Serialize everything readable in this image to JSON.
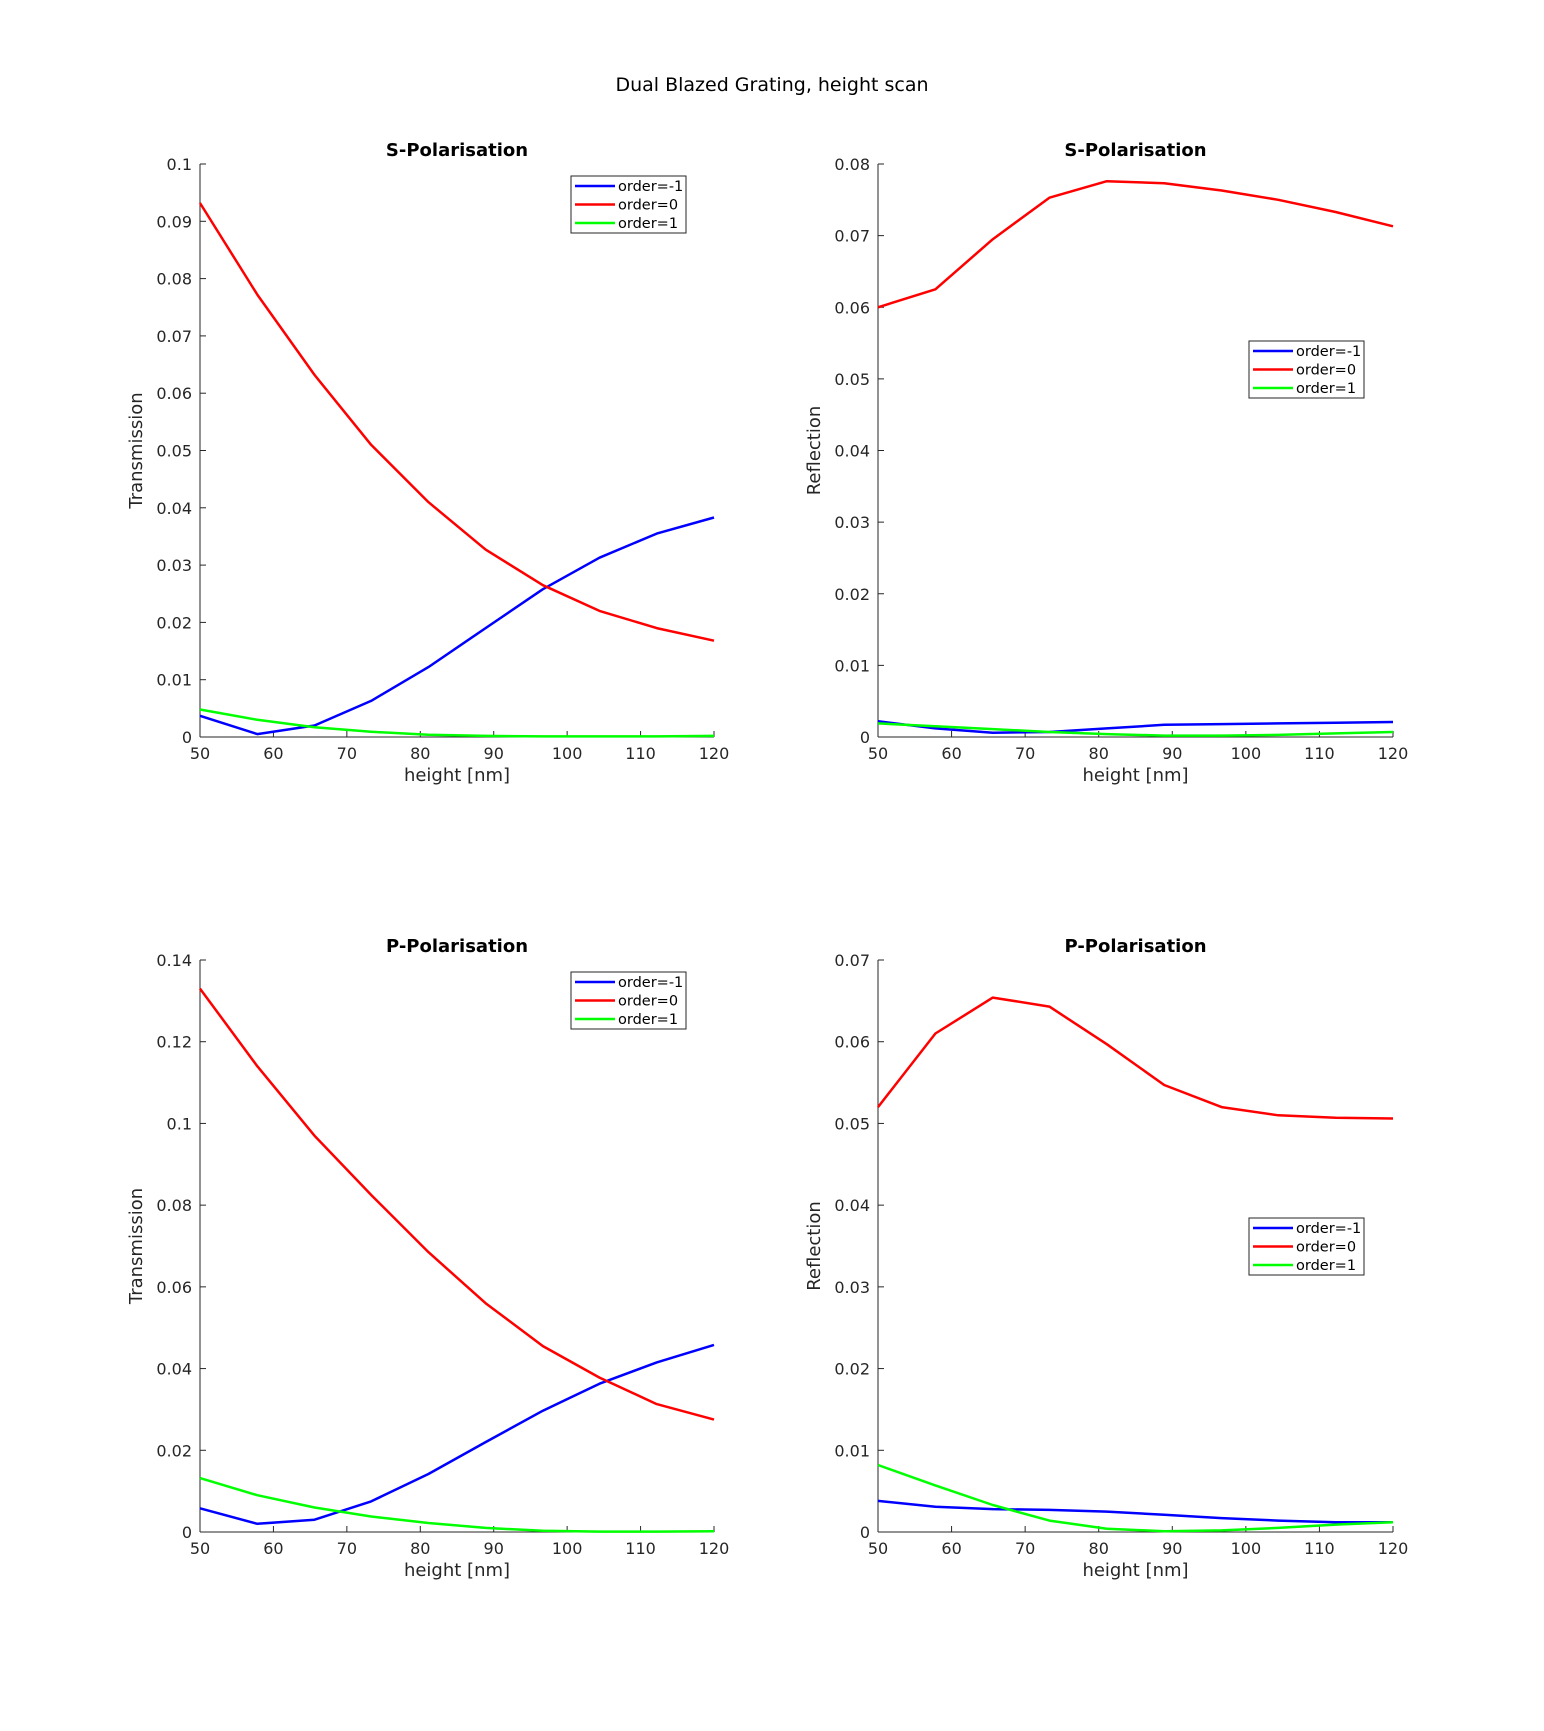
{
  "figure": {
    "title": "Dual Blazed Grating, height scan"
  },
  "chart_data": [
    {
      "type": "line",
      "title": "S-Polarisation",
      "xlabel": "height [nm]",
      "ylabel": "Transmission",
      "xlim": [
        50,
        120
      ],
      "ylim": [
        0,
        0.1
      ],
      "xticks": [
        50,
        60,
        70,
        80,
        90,
        100,
        110,
        120
      ],
      "yticks": [
        0,
        0.01,
        0.02,
        0.03,
        0.04,
        0.05,
        0.06,
        0.07,
        0.08,
        0.09,
        0.1
      ],
      "ytick_labels": [
        "0",
        "0.01",
        "0.02",
        "0.03",
        "0.04",
        "0.05",
        "0.06",
        "0.07",
        "0.08",
        "0.09",
        "0.1"
      ],
      "legend_position": "top-right",
      "x": [
        50,
        57.8,
        65.6,
        73.3,
        81.1,
        88.9,
        96.7,
        104.4,
        112.2,
        120
      ],
      "series": [
        {
          "name": "order=-1",
          "color": "#0000ff",
          "values": [
            0.0037,
            0.0005,
            0.002,
            0.0063,
            0.0122,
            0.019,
            0.0258,
            0.0313,
            0.0355,
            0.0383
          ]
        },
        {
          "name": "order=0",
          "color": "#ff0000",
          "values": [
            0.0932,
            0.0772,
            0.0632,
            0.051,
            0.041,
            0.0327,
            0.0265,
            0.022,
            0.019,
            0.0168
          ]
        },
        {
          "name": "order=1",
          "color": "#00ff00",
          "values": [
            0.0048,
            0.003,
            0.0017,
            0.0009,
            0.0004,
            0.0002,
            0.0001,
            0.0001,
            0.0001,
            0.0002
          ]
        }
      ]
    },
    {
      "type": "line",
      "title": "S-Polarisation",
      "xlabel": "height [nm]",
      "ylabel": "Reflection",
      "xlim": [
        50,
        120
      ],
      "ylim": [
        0,
        0.08
      ],
      "xticks": [
        50,
        60,
        70,
        80,
        90,
        100,
        110,
        120
      ],
      "yticks": [
        0,
        0.01,
        0.02,
        0.03,
        0.04,
        0.05,
        0.06,
        0.07,
        0.08
      ],
      "ytick_labels": [
        "0",
        "0.01",
        "0.02",
        "0.03",
        "0.04",
        "0.05",
        "0.06",
        "0.07",
        "0.08"
      ],
      "legend_position": "center-right",
      "x": [
        50,
        57.8,
        65.6,
        73.3,
        81.1,
        88.9,
        96.7,
        104.4,
        112.2,
        120
      ],
      "series": [
        {
          "name": "order=-1",
          "color": "#0000ff",
          "values": [
            0.0022,
            0.0012,
            0.0006,
            0.0007,
            0.0012,
            0.0017,
            0.0018,
            0.0019,
            0.002,
            0.0021
          ]
        },
        {
          "name": "order=0",
          "color": "#ff0000",
          "values": [
            0.06,
            0.0625,
            0.0695,
            0.0753,
            0.0776,
            0.0773,
            0.0763,
            0.075,
            0.0733,
            0.0713
          ]
        },
        {
          "name": "order=1",
          "color": "#00ff00",
          "values": [
            0.0019,
            0.0015,
            0.0011,
            0.0007,
            0.0004,
            0.0002,
            0.0002,
            0.0003,
            0.0005,
            0.0007
          ]
        }
      ]
    },
    {
      "type": "line",
      "title": "P-Polarisation",
      "xlabel": "height [nm]",
      "ylabel": "Transmission",
      "xlim": [
        50,
        120
      ],
      "ylim": [
        0,
        0.14
      ],
      "xticks": [
        50,
        60,
        70,
        80,
        90,
        100,
        110,
        120
      ],
      "yticks": [
        0,
        0.02,
        0.04,
        0.06,
        0.08,
        0.1,
        0.12,
        0.14
      ],
      "ytick_labels": [
        "0",
        "0.02",
        "0.04",
        "0.06",
        "0.08",
        "0.1",
        "0.12",
        "0.14"
      ],
      "legend_position": "top-right",
      "x": [
        50,
        57.8,
        65.6,
        73.3,
        81.1,
        88.9,
        96.7,
        104.4,
        112.2,
        120
      ],
      "series": [
        {
          "name": "order=-1",
          "color": "#0000ff",
          "values": [
            0.0058,
            0.002,
            0.003,
            0.0075,
            0.0142,
            0.022,
            0.0297,
            0.0363,
            0.0415,
            0.0458
          ]
        },
        {
          "name": "order=0",
          "color": "#ff0000",
          "values": [
            0.133,
            0.114,
            0.097,
            0.0825,
            0.0685,
            0.056,
            0.0455,
            0.0378,
            0.0313,
            0.0275
          ]
        },
        {
          "name": "order=1",
          "color": "#00ff00",
          "values": [
            0.0132,
            0.009,
            0.006,
            0.0038,
            0.0022,
            0.001,
            0.0003,
            0.0001,
            0.0001,
            0.0002
          ]
        }
      ]
    },
    {
      "type": "line",
      "title": "P-Polarisation",
      "xlabel": "height [nm]",
      "ylabel": "Reflection",
      "xlim": [
        50,
        120
      ],
      "ylim": [
        0,
        0.07
      ],
      "xticks": [
        50,
        60,
        70,
        80,
        90,
        100,
        110,
        120
      ],
      "yticks": [
        0,
        0.01,
        0.02,
        0.03,
        0.04,
        0.05,
        0.06,
        0.07
      ],
      "ytick_labels": [
        "0",
        "0.01",
        "0.02",
        "0.03",
        "0.04",
        "0.05",
        "0.06",
        "0.07"
      ],
      "legend_position": "center-right",
      "x": [
        50,
        57.8,
        65.6,
        73.3,
        81.1,
        88.9,
        96.7,
        104.4,
        112.2,
        120
      ],
      "series": [
        {
          "name": "order=-1",
          "color": "#0000ff",
          "values": [
            0.0038,
            0.0031,
            0.0028,
            0.0027,
            0.0025,
            0.0021,
            0.0017,
            0.0014,
            0.0012,
            0.0012
          ]
        },
        {
          "name": "order=0",
          "color": "#ff0000",
          "values": [
            0.052,
            0.061,
            0.0654,
            0.0643,
            0.0597,
            0.0547,
            0.052,
            0.051,
            0.0507,
            0.0506
          ]
        },
        {
          "name": "order=1",
          "color": "#00ff00",
          "values": [
            0.0082,
            0.0057,
            0.0033,
            0.0014,
            0.0004,
            0.0001,
            0.0002,
            0.0005,
            0.0009,
            0.0012
          ]
        }
      ]
    }
  ]
}
